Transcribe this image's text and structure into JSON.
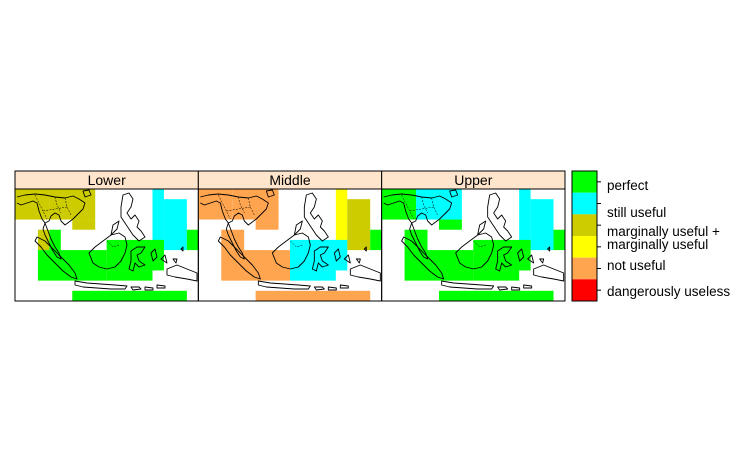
{
  "panels": [
    {
      "label": "Lower",
      "cells": [
        {
          "col": 0,
          "row": 0,
          "w": 3,
          "h": 3,
          "cat": "marginally_useful_plus"
        },
        {
          "col": 3,
          "row": 0,
          "w": 4,
          "h": 3,
          "cat": "marginally_useful_plus"
        },
        {
          "col": 5,
          "row": 3,
          "w": 2,
          "h": 1,
          "cat": "marginally_useful_plus"
        },
        {
          "col": 12,
          "row": 0,
          "w": 1,
          "h": 6,
          "cat": "still_useful"
        },
        {
          "col": 13,
          "row": 1,
          "w": 2,
          "h": 5,
          "cat": "still_useful"
        },
        {
          "col": 15,
          "row": 4,
          "w": 1,
          "h": 2,
          "cat": "perfect"
        },
        {
          "col": 2,
          "row": 4,
          "w": 1,
          "h": 2,
          "cat": "marginally_useful_plus"
        },
        {
          "col": 3,
          "row": 4,
          "w": 1,
          "h": 3,
          "cat": "perfect"
        },
        {
          "col": 2,
          "row": 6,
          "w": 6,
          "h": 3,
          "cat": "perfect"
        },
        {
          "col": 8,
          "row": 5,
          "w": 5,
          "h": 3,
          "cat": "perfect"
        },
        {
          "col": 8,
          "row": 8,
          "w": 4,
          "h": 1,
          "cat": "perfect"
        },
        {
          "col": 5,
          "row": 10,
          "w": 10,
          "h": 1,
          "cat": "perfect"
        }
      ]
    },
    {
      "label": "Middle",
      "cells": [
        {
          "col": 0,
          "row": 0,
          "w": 3,
          "h": 3,
          "cat": "not_useful"
        },
        {
          "col": 3,
          "row": 0,
          "w": 4,
          "h": 3,
          "cat": "not_useful"
        },
        {
          "col": 5,
          "row": 3,
          "w": 2,
          "h": 1,
          "cat": "not_useful"
        },
        {
          "col": 12,
          "row": 0,
          "w": 1,
          "h": 6,
          "cat": "marginally_useful"
        },
        {
          "col": 13,
          "row": 1,
          "w": 2,
          "h": 5,
          "cat": "marginally_useful_plus"
        },
        {
          "col": 15,
          "row": 4,
          "w": 1,
          "h": 2,
          "cat": "perfect"
        },
        {
          "col": 2,
          "row": 4,
          "w": 1,
          "h": 2,
          "cat": "not_useful"
        },
        {
          "col": 3,
          "row": 4,
          "w": 1,
          "h": 3,
          "cat": "not_useful"
        },
        {
          "col": 2,
          "row": 6,
          "w": 6,
          "h": 3,
          "cat": "not_useful"
        },
        {
          "col": 8,
          "row": 5,
          "w": 5,
          "h": 3,
          "cat": "still_useful"
        },
        {
          "col": 8,
          "row": 8,
          "w": 4,
          "h": 1,
          "cat": "still_useful"
        },
        {
          "col": 5,
          "row": 10,
          "w": 10,
          "h": 1,
          "cat": "not_useful"
        }
      ]
    },
    {
      "label": "Upper",
      "cells": [
        {
          "col": 0,
          "row": 0,
          "w": 3,
          "h": 3,
          "cat": "perfect"
        },
        {
          "col": 3,
          "row": 0,
          "w": 4,
          "h": 3,
          "cat": "still_useful"
        },
        {
          "col": 5,
          "row": 3,
          "w": 2,
          "h": 1,
          "cat": "perfect"
        },
        {
          "col": 12,
          "row": 0,
          "w": 1,
          "h": 6,
          "cat": "still_useful"
        },
        {
          "col": 13,
          "row": 1,
          "w": 2,
          "h": 5,
          "cat": "still_useful"
        },
        {
          "col": 15,
          "row": 4,
          "w": 1,
          "h": 2,
          "cat": "perfect"
        },
        {
          "col": 2,
          "row": 4,
          "w": 1,
          "h": 2,
          "cat": "perfect"
        },
        {
          "col": 3,
          "row": 4,
          "w": 1,
          "h": 3,
          "cat": "perfect"
        },
        {
          "col": 2,
          "row": 6,
          "w": 6,
          "h": 3,
          "cat": "perfect"
        },
        {
          "col": 8,
          "row": 5,
          "w": 5,
          "h": 3,
          "cat": "perfect"
        },
        {
          "col": 8,
          "row": 8,
          "w": 4,
          "h": 1,
          "cat": "perfect"
        },
        {
          "col": 5,
          "row": 10,
          "w": 10,
          "h": 1,
          "cat": "perfect"
        }
      ]
    }
  ],
  "legend": {
    "categories": [
      {
        "key": "perfect",
        "label": "perfect",
        "color": "#00ff00"
      },
      {
        "key": "still_useful",
        "label": "still useful",
        "color": "#00ffff"
      },
      {
        "key": "marginally_useful_plus",
        "label": "marginally useful +",
        "color": "#cccc00"
      },
      {
        "key": "marginally_useful",
        "label": "marginally useful",
        "color": "#ffff00"
      },
      {
        "key": "not_useful",
        "label": "not useful",
        "color": "#ffa54f"
      },
      {
        "key": "dangerously_useless",
        "label": "dangerously useless",
        "color": "#ff0000"
      }
    ]
  },
  "strip_color": "#ffe5cc"
}
